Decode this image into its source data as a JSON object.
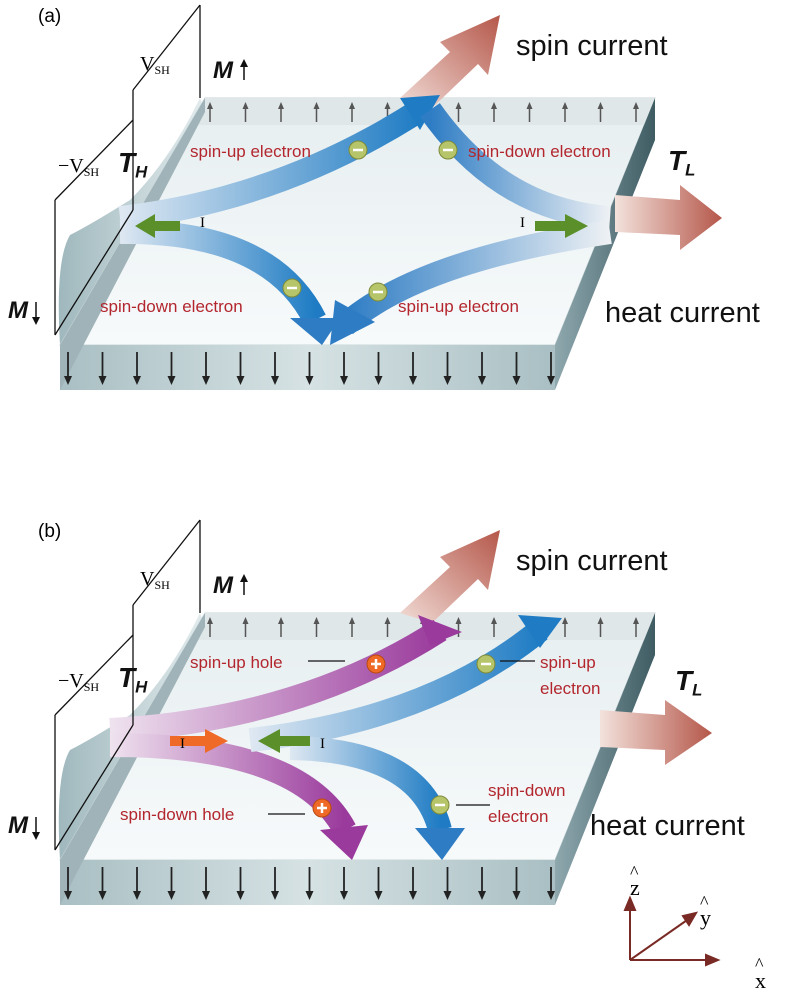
{
  "panels": [
    {
      "label": "(a)",
      "spin_current": "spin current",
      "heat_current": "heat current",
      "v_sh": {
        "symbol": "V",
        "subscript": "SH"
      },
      "neg_v_sh": {
        "symbol": "−V",
        "subscript": "SH"
      },
      "m_up": "M",
      "m_down": "M",
      "t_h": {
        "symbol": "T",
        "subscript": "H"
      },
      "t_l": {
        "symbol": "T",
        "subscript": "L"
      },
      "carriers": [
        "spin-up electron",
        "spin-down electron",
        "spin-down electron",
        "spin-up electron"
      ],
      "currents": [
        "I",
        "I"
      ]
    },
    {
      "label": "(b)",
      "spin_current": "spin current",
      "heat_current": "heat current",
      "v_sh": {
        "symbol": "V",
        "subscript": "SH"
      },
      "neg_v_sh": {
        "symbol": "−V",
        "subscript": "SH"
      },
      "m_up": "M",
      "m_down": "M",
      "t_h": {
        "symbol": "T",
        "subscript": "H"
      },
      "t_l": {
        "symbol": "T",
        "subscript": "L"
      },
      "carriers": [
        "spin-up hole",
        "spin-up",
        "electron",
        "spin-down hole",
        "spin-down",
        "electron"
      ],
      "currents": [
        "I",
        "I"
      ]
    }
  ],
  "axes": {
    "hat": "^",
    "z": "z",
    "y": "y",
    "x": "x"
  }
}
